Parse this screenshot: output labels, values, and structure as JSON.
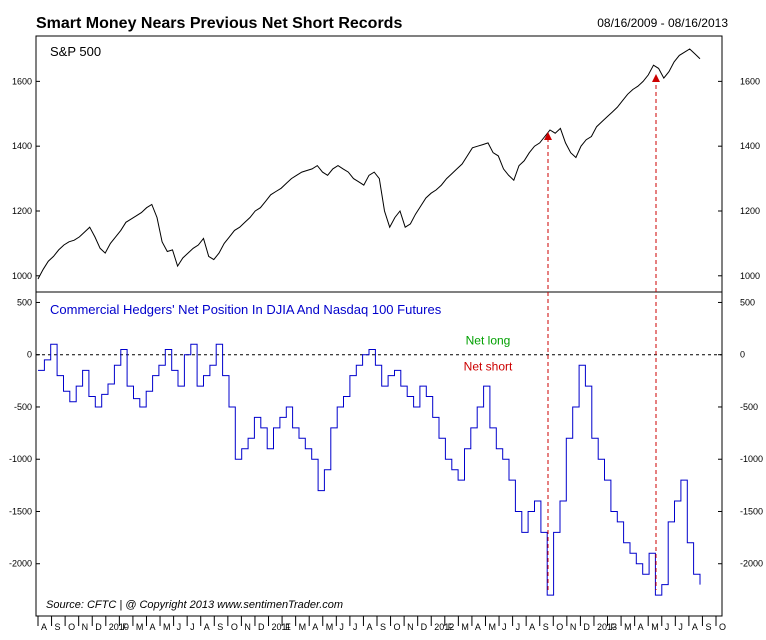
{
  "header": {
    "title": "Smart Money Nears Previous Net Short Records",
    "date_range": "08/16/2009 - 08/16/2013"
  },
  "footer": {
    "source": "Source:  CFTC  |   @ Copyright 2013   www.sentimenTrader.com"
  },
  "colors": {
    "spx_line": "#000000",
    "hedgers_line": "#0000cc",
    "zero_line": "#000000",
    "marker_line": "#cc0000",
    "net_long": "#00a000",
    "net_short": "#cc0000",
    "panel_label_blue": "#0000cc"
  },
  "chart_data": [
    {
      "type": "line",
      "title": "S&P 500",
      "ylim": [
        950,
        1740
      ],
      "yticks": [
        1000,
        1200,
        1400,
        1600
      ],
      "x_ticks": [
        "A",
        "S",
        "O",
        "N",
        "D",
        "2010",
        "F",
        "M",
        "A",
        "M",
        "J",
        "J",
        "A",
        "S",
        "O",
        "N",
        "D",
        "2011",
        "F",
        "M",
        "A",
        "M",
        "J",
        "J",
        "A",
        "S",
        "O",
        "N",
        "D",
        "2012",
        "F",
        "M",
        "A",
        "M",
        "J",
        "J",
        "A",
        "S",
        "O",
        "N",
        "D",
        "2013",
        "F",
        "M",
        "A",
        "M",
        "J",
        "J",
        "A",
        "S",
        "O"
      ],
      "series": [
        {
          "values": [
            990,
            1020,
            1045,
            1060,
            1080,
            1095,
            1105,
            1110,
            1120,
            1135,
            1150,
            1120,
            1085,
            1070,
            1100,
            1120,
            1140,
            1165,
            1175,
            1185,
            1195,
            1210,
            1220,
            1180,
            1105,
            1075,
            1080,
            1030,
            1055,
            1070,
            1085,
            1095,
            1115,
            1060,
            1050,
            1070,
            1100,
            1120,
            1140,
            1150,
            1165,
            1180,
            1200,
            1210,
            1230,
            1250,
            1260,
            1270,
            1285,
            1300,
            1310,
            1320,
            1325,
            1330,
            1340,
            1320,
            1310,
            1330,
            1340,
            1330,
            1320,
            1300,
            1290,
            1280,
            1310,
            1320,
            1300,
            1200,
            1150,
            1180,
            1200,
            1150,
            1160,
            1190,
            1215,
            1240,
            1255,
            1265,
            1280,
            1300,
            1315,
            1330,
            1345,
            1370,
            1395,
            1400,
            1405,
            1410,
            1380,
            1370,
            1330,
            1310,
            1295,
            1340,
            1355,
            1380,
            1400,
            1410,
            1430,
            1450,
            1440,
            1455,
            1410,
            1380,
            1365,
            1400,
            1420,
            1430,
            1460,
            1475,
            1490,
            1505,
            1520,
            1540,
            1560,
            1575,
            1585,
            1600,
            1620,
            1650,
            1640,
            1610,
            1630,
            1660,
            1680,
            1690,
            1700,
            1685,
            1670
          ]
        }
      ],
      "annotations": [
        "S&P 500"
      ]
    },
    {
      "type": "line",
      "title": "Commercial Hedgers' Net Position In DJIA And Nasdaq 100 Futures",
      "ylim": [
        -2500,
        600
      ],
      "yticks": [
        500,
        0,
        -500,
        -1000,
        -1500,
        -2000
      ],
      "series": [
        {
          "values": [
            -150,
            -50,
            100,
            -200,
            -350,
            -450,
            -300,
            -150,
            -400,
            -500,
            -380,
            -280,
            -100,
            50,
            -300,
            -420,
            -500,
            -350,
            -200,
            -100,
            50,
            -150,
            -300,
            0,
            100,
            -300,
            -200,
            -100,
            100,
            -200,
            -500,
            -1000,
            -900,
            -800,
            -600,
            -700,
            -900,
            -700,
            -600,
            -500,
            -700,
            -800,
            -900,
            -1000,
            -1300,
            -1100,
            -700,
            -500,
            -400,
            -200,
            -100,
            0,
            50,
            -100,
            -300,
            -200,
            -150,
            -300,
            -400,
            -500,
            -300,
            -400,
            -600,
            -800,
            -1000,
            -1100,
            -1200,
            -900,
            -700,
            -500,
            -300,
            -700,
            -900,
            -1000,
            -1200,
            -1500,
            -1700,
            -1500,
            -1400,
            -1700,
            -2300,
            -1700,
            -1400,
            -800,
            -500,
            -100,
            -300,
            -800,
            -1000,
            -1200,
            -1500,
            -1600,
            -1800,
            -1900,
            -2000,
            -2100,
            -1900,
            -2300,
            -2200,
            -1600,
            -1400,
            -1200,
            -1800,
            -2100,
            -2200
          ],
          "annotations": [
            "Net long",
            "Net short"
          ]
        }
      ],
      "zero_line": 0
    }
  ]
}
